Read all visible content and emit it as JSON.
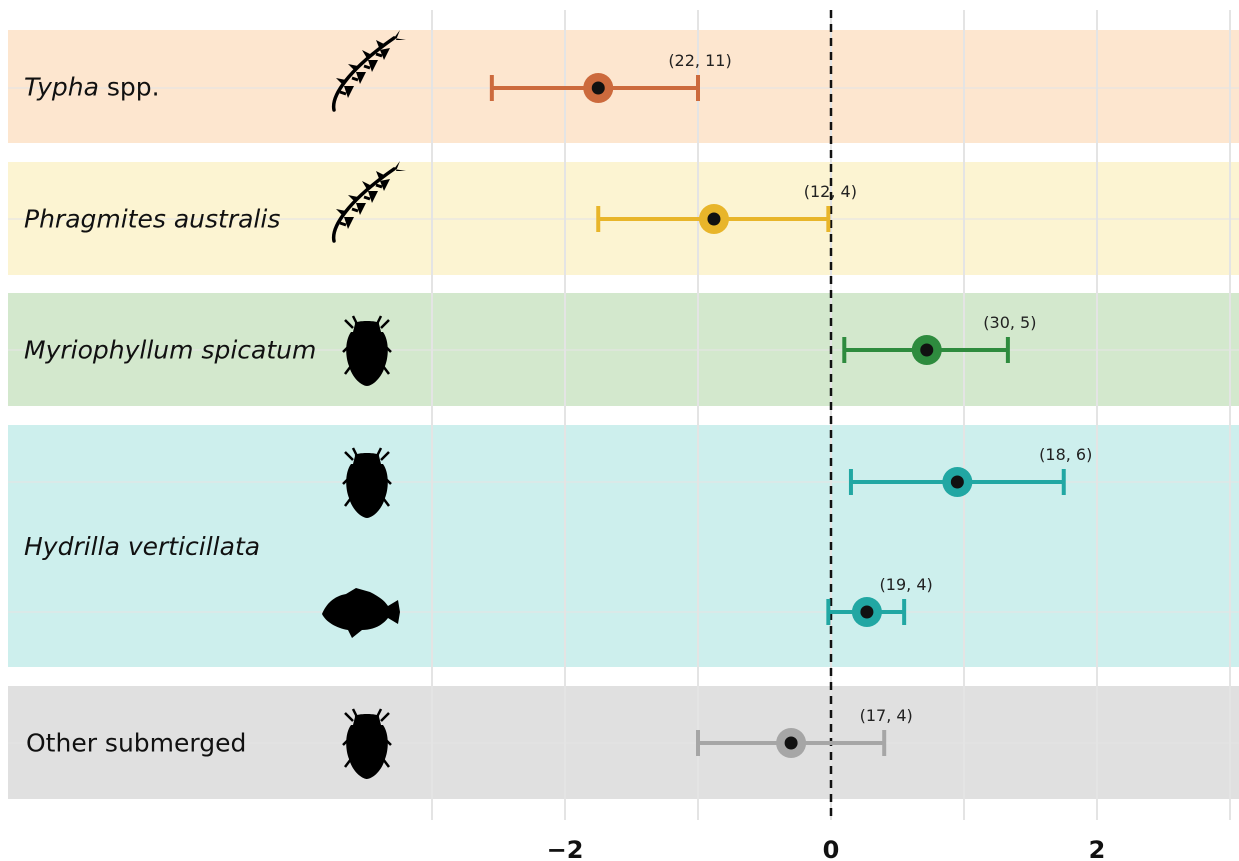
{
  "chart_data": {
    "type": "forest",
    "xlabel": "",
    "xlim": [
      -3.75,
      3.0
    ],
    "x_ticks": [
      -2,
      0,
      2
    ],
    "x_tick_labels": [
      "−2",
      "0",
      "2"
    ],
    "minor_gridlines": [
      -3,
      -1,
      1,
      3
    ],
    "reference_line": 0,
    "groups": [
      {
        "name": "Typha spp.",
        "genus": "Typha",
        "rest": " spp.",
        "italic_mode": "genus",
        "bg_color": "#fde6cf",
        "points": [
          {
            "icon": "plant-icon",
            "estimate": -1.75,
            "lower": -2.55,
            "upper": -1.0,
            "n_label": "(22, 11)",
            "color": "#cc6a3d"
          }
        ]
      },
      {
        "name": "Phragmites australis",
        "genus": "Phragmites australis",
        "rest": "",
        "italic_mode": "full",
        "bg_color": "#fcf4d2",
        "points": [
          {
            "icon": "plant-icon",
            "estimate": -0.88,
            "lower": -1.75,
            "upper": -0.02,
            "n_label": "(12, 4)",
            "color": "#e8b52a"
          }
        ]
      },
      {
        "name": "Myriophyllum spicatum",
        "genus": "Myriophyllum spicatum",
        "rest": "",
        "italic_mode": "full",
        "bg_color": "#d3e8cd",
        "points": [
          {
            "icon": "insect-icon",
            "estimate": 0.72,
            "lower": 0.1,
            "upper": 1.33,
            "n_label": "(30, 5)",
            "color": "#2e8b3e"
          }
        ]
      },
      {
        "name": "Hydrilla verticillata",
        "genus": "Hydrilla verticillata",
        "rest": "",
        "italic_mode": "full",
        "bg_color": "#cdefed",
        "points": [
          {
            "icon": "insect-icon",
            "estimate": 0.95,
            "lower": 0.15,
            "upper": 1.75,
            "n_label": "(18, 6)",
            "color": "#21a7a3"
          },
          {
            "icon": "fish-icon",
            "estimate": 0.27,
            "lower": -0.02,
            "upper": 0.55,
            "n_label": "(19, 4)",
            "color": "#21a7a3"
          }
        ]
      },
      {
        "name": "Other submerged",
        "genus": "",
        "rest": "Other submerged",
        "italic_mode": "none",
        "bg_color": "#e0e0e0",
        "points": [
          {
            "icon": "insect-icon",
            "estimate": -0.3,
            "lower": -1.0,
            "upper": 0.4,
            "n_label": "(17, 4)",
            "color": "#a6a6a6"
          }
        ]
      }
    ]
  }
}
